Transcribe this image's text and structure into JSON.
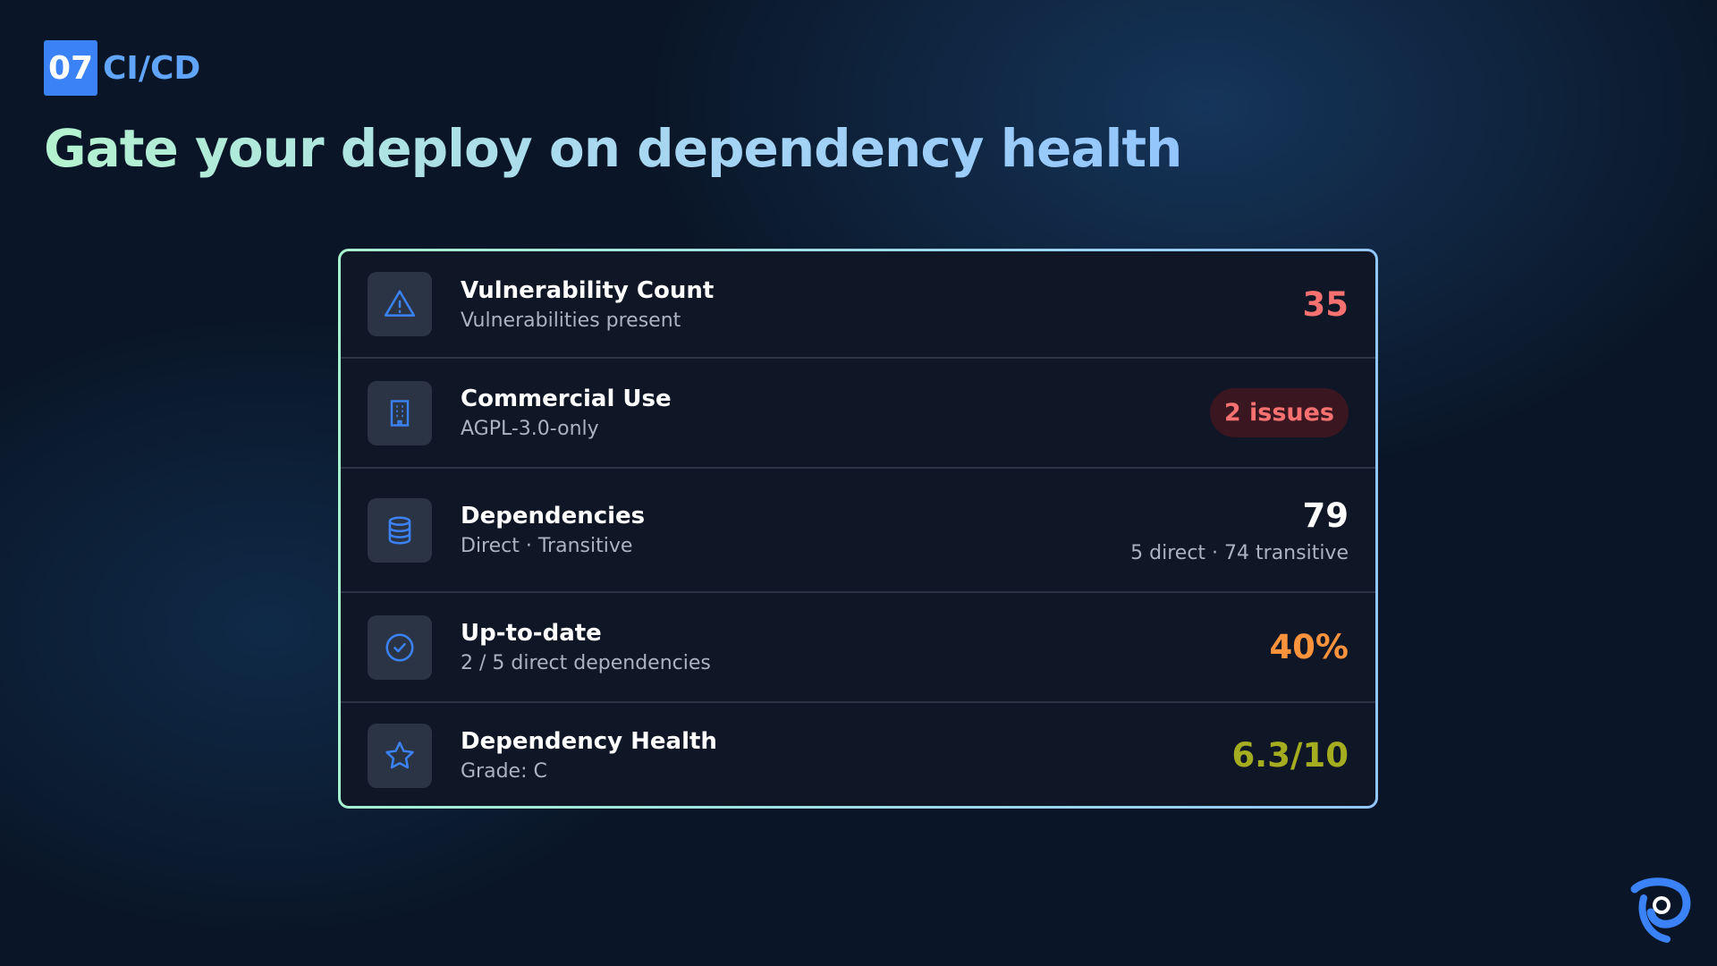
{
  "header": {
    "badge": "07",
    "section": "CI/CD",
    "title": "Gate your deploy on dependency health"
  },
  "rows": [
    {
      "label": "Vulnerability Count",
      "sublabel": "Vulnerabilities present",
      "value": "35"
    },
    {
      "label": "Commercial Use",
      "sublabel": "AGPL-3.0-only",
      "value": "2 issues"
    },
    {
      "label": "Dependencies",
      "sublabel": "Direct · Transitive",
      "value": "79",
      "detail": "5 direct · 74 transitive"
    },
    {
      "label": "Up-to-date",
      "sublabel": "2 / 5 direct dependencies",
      "value": "40%"
    },
    {
      "label": "Dependency Health",
      "sublabel": "Grade: C",
      "value": "6.3/10"
    }
  ]
}
